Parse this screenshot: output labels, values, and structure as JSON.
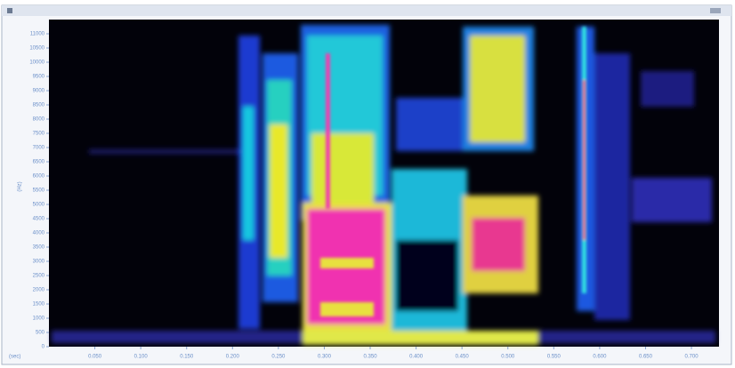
{
  "chart_data": {
    "type": "spectrogram",
    "ylabel": "(Hz)",
    "xlabel": "(sec)",
    "xlim": [
      0,
      0.73
    ],
    "xticks": [
      {
        "value": 0.05,
        "label": "0.050"
      },
      {
        "value": 0.1,
        "label": "0.100"
      },
      {
        "value": 0.15,
        "label": "0.150"
      },
      {
        "value": 0.2,
        "label": "0.200"
      },
      {
        "value": 0.25,
        "label": "0.250"
      },
      {
        "value": 0.3,
        "label": "0.300"
      },
      {
        "value": 0.35,
        "label": "0.350"
      },
      {
        "value": 0.4,
        "label": "0.400"
      },
      {
        "value": 0.45,
        "label": "0.450"
      },
      {
        "value": 0.5,
        "label": "0.500"
      },
      {
        "value": 0.55,
        "label": "0.550"
      },
      {
        "value": 0.6,
        "label": "0.600"
      },
      {
        "value": 0.65,
        "label": "0.650"
      },
      {
        "value": 0.7,
        "label": "0.700"
      }
    ],
    "ylim": [
      0,
      11500
    ],
    "yticks": [
      0,
      500,
      1000,
      1500,
      2000,
      2500,
      3000,
      3500,
      4000,
      4500,
      5000,
      5500,
      6000,
      6500,
      7000,
      7500,
      8000,
      8500,
      9000,
      9500,
      10000,
      10500,
      11000
    ]
  }
}
